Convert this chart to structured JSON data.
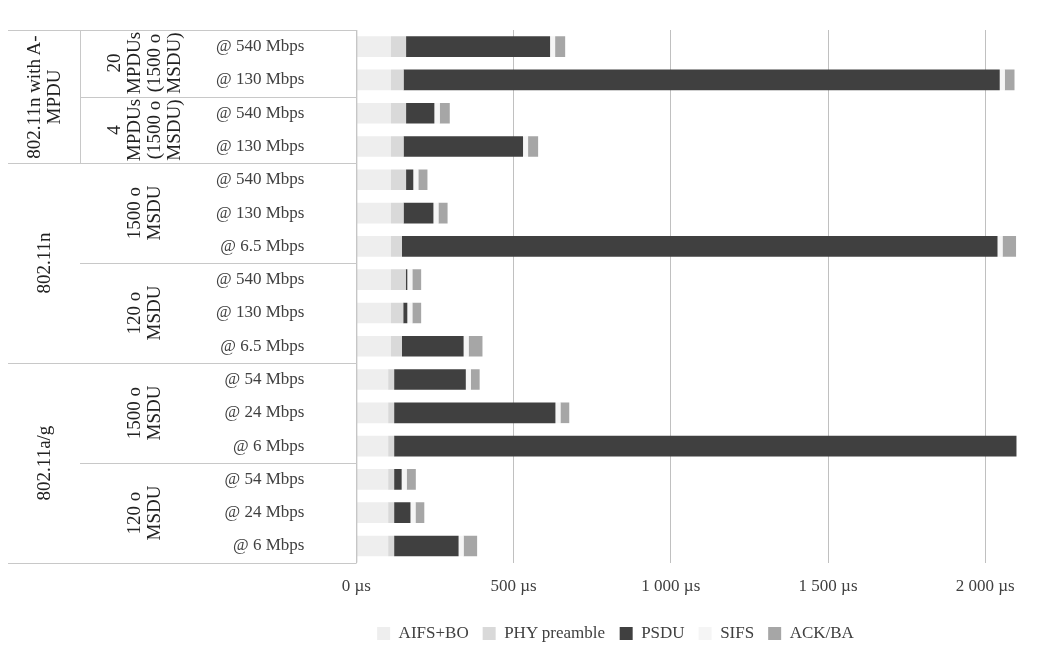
{
  "chart_data": {
    "type": "bar",
    "orientation": "horizontal",
    "stacked": true,
    "categories": [
      "@ 540 Mbps",
      "@ 130 Mbps",
      "@ 540 Mbps",
      "@ 130 Mbps",
      "@ 540 Mbps",
      "@ 130 Mbps",
      "@ 6.5 Mbps",
      "@ 540 Mbps",
      "@ 130 Mbps",
      "@ 6.5 Mbps",
      "@ 54 Mbps",
      "@ 24 Mbps",
      "@ 6 Mbps",
      "@ 54 Mbps",
      "@ 24 Mbps",
      "@ 6 Mbps"
    ],
    "series": [
      {
        "name": "AIFS+BO",
        "color": "#eeeeee",
        "values": [
          110,
          110,
          110,
          110,
          110,
          110,
          110,
          110,
          110,
          110,
          101,
          101,
          101,
          101,
          101,
          101
        ]
      },
      {
        "name": "PHY preamble",
        "color": "#d9d9d9",
        "values": [
          48,
          40,
          48,
          40,
          48,
          40,
          35,
          47,
          39,
          35,
          19,
          19,
          19,
          19,
          19,
          19
        ]
      },
      {
        "name": "PSDU",
        "color": "#404040",
        "values": [
          458,
          1896,
          90,
          380,
          23,
          95,
          1894,
          5,
          13,
          196,
          228,
          513,
          1980,
          24,
          52,
          205
        ]
      },
      {
        "name": "SIFS",
        "color": "#f5f5f5",
        "values": [
          16,
          16,
          17,
          16,
          16,
          16,
          16,
          16,
          16,
          16,
          16,
          16,
          null,
          16,
          16,
          16
        ]
      },
      {
        "name": "ACK/BA",
        "color": "#a6a6a6",
        "values": [
          32,
          31,
          32,
          32,
          29,
          29,
          43,
          28,
          28,
          44,
          28,
          28,
          null,
          29,
          28,
          43
        ]
      }
    ],
    "xlim": [
      0,
      2100
    ],
    "xticks": [
      {
        "value": 0,
        "label": "0 µs"
      },
      {
        "value": 500,
        "label": "500 µs"
      },
      {
        "value": 1000,
        "label": "1 000 µs"
      },
      {
        "value": 1500,
        "label": "1 500 µs"
      },
      {
        "value": 2000,
        "label": "2 000 µs"
      }
    ],
    "grid": "x",
    "legend": "bottom",
    "annotations": [
      "802.11n with A-MPDU",
      "20 MPDUs (1500 o MSDU)",
      "4 MPDUs (1500 o MSDU)",
      "802.11n",
      "1500 o MSDU",
      "120 o MSDU",
      "802.11a/g",
      "1500 o MSDU",
      "120 o MSDU"
    ]
  }
}
